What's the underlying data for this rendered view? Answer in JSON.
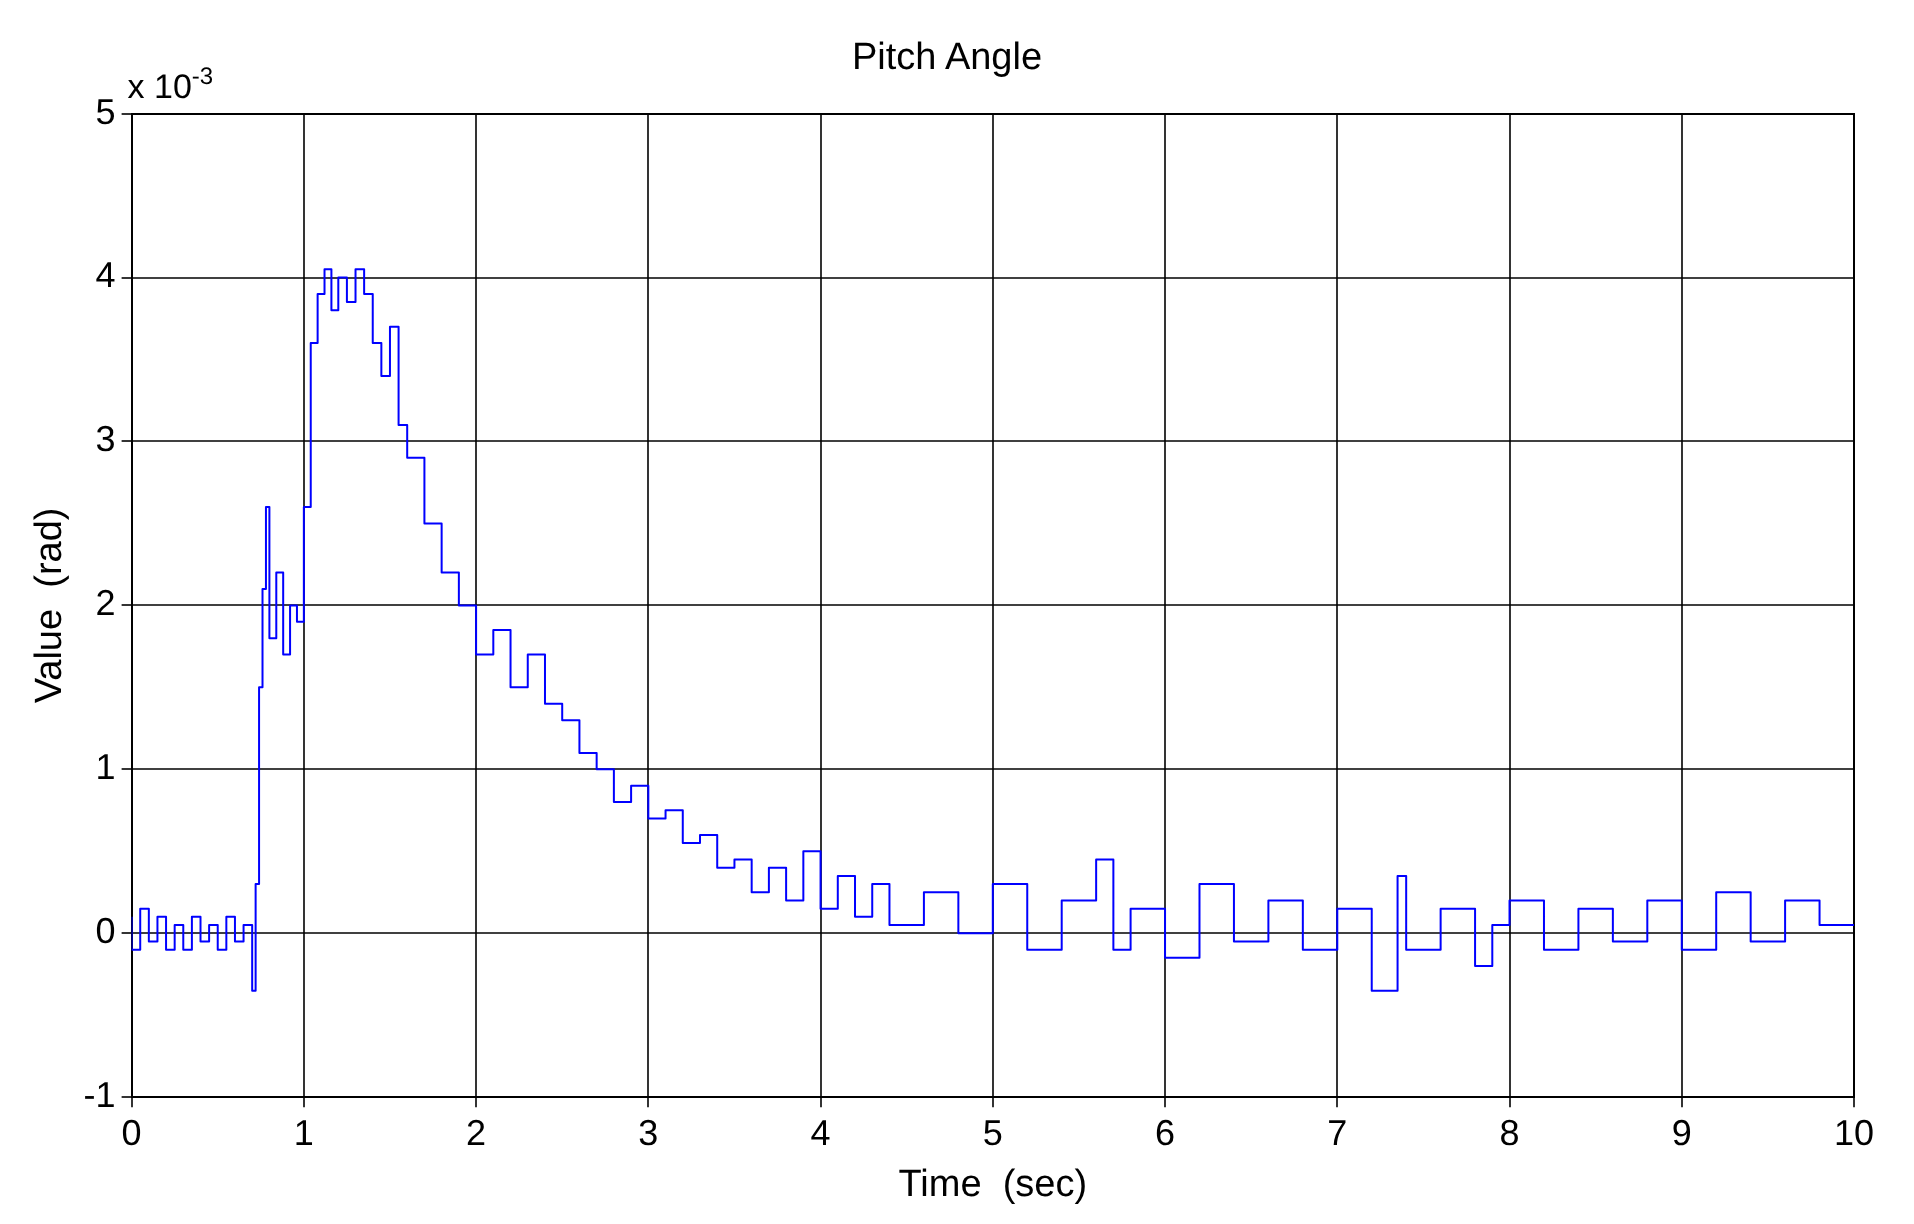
{
  "chart_data": {
    "type": "step",
    "title": "Pitch Angle",
    "xlabel": "Time  (sec)",
    "ylabel": "Value  (rad)",
    "annotations": [
      "x 10$^{-3}$"
    ],
    "xlim": [
      0,
      10
    ],
    "xticks": [
      0,
      1,
      2,
      3,
      4,
      5,
      6,
      7,
      8,
      9,
      10
    ],
    "ylim": [
      -1,
      5
    ],
    "yticks": [
      -1,
      0,
      1,
      2,
      3,
      4,
      5
    ],
    "grid": true,
    "legend": false,
    "series": [
      {
        "color": "#0000ff",
        "x": [
          0,
          0.05,
          0.1,
          0.15,
          0.2,
          0.25,
          0.3,
          0.35,
          0.4,
          0.45,
          0.5,
          0.55,
          0.6,
          0.65,
          0.7,
          0.72,
          0.74,
          0.76,
          0.78,
          0.8,
          0.84,
          0.88,
          0.92,
          0.96,
          1.0,
          1.04,
          1.08,
          1.12,
          1.16,
          1.2,
          1.25,
          1.3,
          1.35,
          1.4,
          1.45,
          1.5,
          1.55,
          1.6,
          1.7,
          1.8,
          1.9,
          2.0,
          2.1,
          2.2,
          2.3,
          2.4,
          2.5,
          2.6,
          2.7,
          2.8,
          2.9,
          3.0,
          3.1,
          3.2,
          3.3,
          3.4,
          3.5,
          3.6,
          3.7,
          3.8,
          3.9,
          4.0,
          4.1,
          4.2,
          4.3,
          4.4,
          4.6,
          4.8,
          5.0,
          5.2,
          5.4,
          5.6,
          5.7,
          5.8,
          6.0,
          6.2,
          6.4,
          6.6,
          6.8,
          7.0,
          7.2,
          7.35,
          7.4,
          7.6,
          7.8,
          7.9,
          8.0,
          8.2,
          8.4,
          8.6,
          8.8,
          9.0,
          9.2,
          9.4,
          9.6,
          9.8,
          10
        ],
        "values": [
          0.1,
          -0.1,
          0.15,
          -0.05,
          0.1,
          -0.1,
          0.05,
          -0.1,
          0.1,
          -0.05,
          0.05,
          -0.1,
          0.1,
          -0.05,
          0.05,
          -0.35,
          0.3,
          1.5,
          2.1,
          2.6,
          1.8,
          2.2,
          1.7,
          2.0,
          1.9,
          2.6,
          3.6,
          3.9,
          4.05,
          3.8,
          4.0,
          3.85,
          4.05,
          3.9,
          3.6,
          3.4,
          3.7,
          3.1,
          2.9,
          2.5,
          2.2,
          2.0,
          1.7,
          1.85,
          1.5,
          1.7,
          1.4,
          1.3,
          1.1,
          1.0,
          0.8,
          0.9,
          0.7,
          0.75,
          0.55,
          0.6,
          0.4,
          0.45,
          0.25,
          0.4,
          0.2,
          0.5,
          0.15,
          0.35,
          0.1,
          0.3,
          0.05,
          0.25,
          0.0,
          0.3,
          -0.1,
          0.2,
          0.45,
          -0.1,
          0.15,
          -0.15,
          0.3,
          -0.05,
          0.2,
          -0.1,
          0.15,
          -0.35,
          0.35,
          -0.1,
          0.15,
          -0.2,
          0.05,
          0.2,
          -0.1,
          0.15,
          -0.05,
          0.2,
          -0.1,
          0.25,
          -0.05,
          0.2,
          0.05
        ]
      }
    ]
  }
}
